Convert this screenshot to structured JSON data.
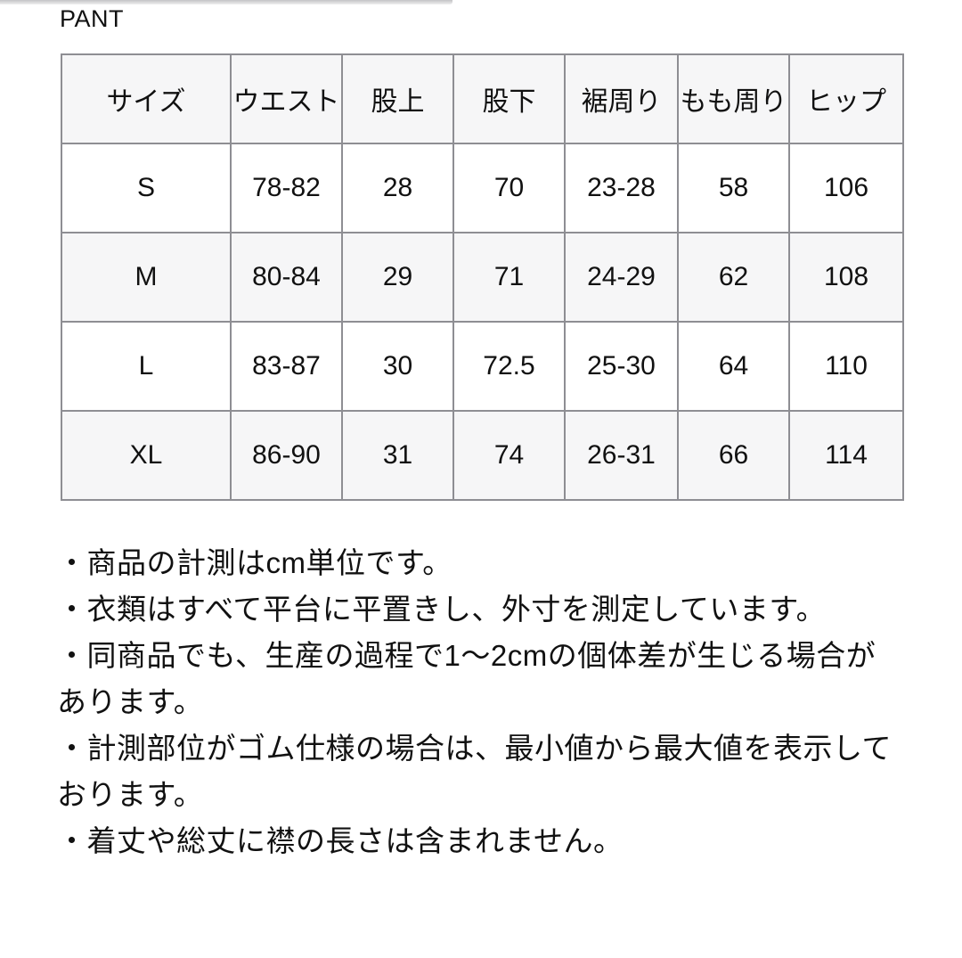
{
  "page": {
    "title": "PANT"
  },
  "colors": {
    "table_border": "#8e8e93",
    "header_row_bg": "#f6f6f7",
    "alt_row_bg": "#f6f6f7",
    "text": "#111111"
  },
  "size_chart": {
    "columns": [
      "サイズ",
      "ウエスト",
      "股上",
      "股下",
      "裾周り",
      "もも周り",
      "ヒップ"
    ],
    "rows": [
      [
        "S",
        "78-82",
        "28",
        "70",
        "23-28",
        "58",
        "106"
      ],
      [
        "M",
        "80-84",
        "29",
        "71",
        "24-29",
        "62",
        "108"
      ],
      [
        "L",
        "83-87",
        "30",
        "72.5",
        "25-30",
        "64",
        "110"
      ],
      [
        "XL",
        "86-90",
        "31",
        "74",
        "26-31",
        "66",
        "114"
      ]
    ]
  },
  "notes": [
    "・商品の計測はcm単位です。",
    "・衣類はすべて平台に平置きし、外寸を測定しています。",
    "・同商品でも、生産の過程で1〜2cmの個体差が生じる場合があります。",
    "・計測部位がゴム仕様の場合は、最小値から最大値を表示しております。",
    "・着丈や総丈に襟の長さは含まれません。"
  ]
}
